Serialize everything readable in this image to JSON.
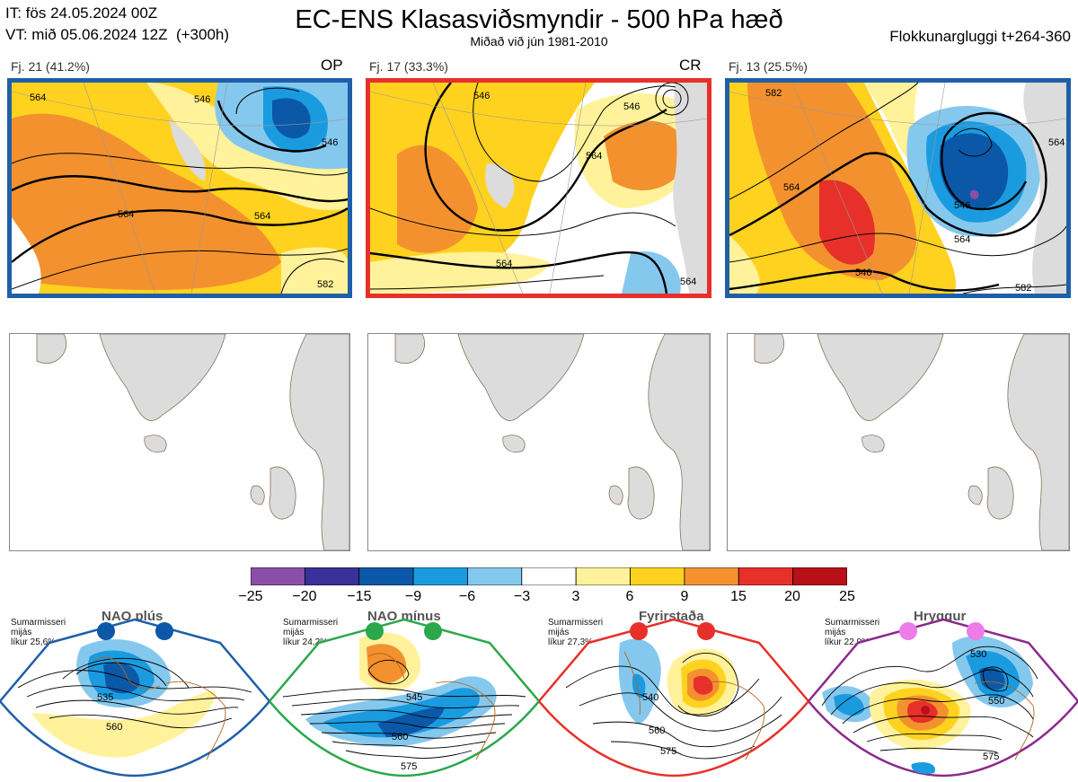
{
  "header": {
    "it_line": "IT: fös 24.05.2024 00Z",
    "vt_line": "VT: mið 05.06.2024 12Z  (+300h)",
    "title": "EC-ENS Klasasviðsmyndir - 500 hPa hæð",
    "subtitle": "Miðað við jún 1981-2010",
    "window": "Flokkunargluggi t+264-360"
  },
  "clusters": [
    {
      "label": "Fj. 21 (41.2%)",
      "tag": "OP",
      "border_color": "#1f5fa8",
      "contour_labels": [
        "564",
        "564",
        "546",
        "564",
        "582",
        "546"
      ]
    },
    {
      "label": "Fj. 17 (33.3%)",
      "tag": "CR",
      "border_color": "#e8302a",
      "contour_labels": [
        "546",
        "564",
        "564",
        "546",
        "564"
      ]
    },
    {
      "label": "Fj. 13 (25.5%)",
      "tag": "",
      "border_color": "#1f5fa8",
      "contour_labels": [
        "564",
        "546",
        "564",
        "546",
        "582",
        "564",
        "582"
      ]
    }
  ],
  "colorbar": {
    "ticks": [
      "−25",
      "−20",
      "−15",
      "−9",
      "−6",
      "−3",
      "3",
      "6",
      "9",
      "15",
      "20",
      "25"
    ],
    "colors": [
      "#8b4fa8",
      "#3b2f99",
      "#0b58a8",
      "#1a9be0",
      "#85c8ee",
      "#ffffff",
      "#fff29a",
      "#ffd21f",
      "#f3912f",
      "#e8302a",
      "#b80f18"
    ]
  },
  "regimes": [
    {
      "name": "NAO plús",
      "note": "Sumarmisseri\nmijás\nlíkur 25,6%",
      "border_color": "#1f5fa8",
      "dot_color": "#0b58a8",
      "contour_labels": [
        "535",
        "560"
      ]
    },
    {
      "name": "NAO mínus",
      "note": "Sumarmisseri\nmijás\nlíkur 24,2%",
      "border_color": "#2aa84a",
      "dot_color": "#2aa84a",
      "contour_labels": [
        "545",
        "560",
        "575"
      ]
    },
    {
      "name": "Fyrirstaða",
      "note": "Sumarmisseri\nmijás\nlíkur 27,3%",
      "border_color": "#e8302a",
      "dot_color": "#e8302a",
      "contour_labels": [
        "540",
        "560",
        "575"
      ]
    },
    {
      "name": "Hryggur",
      "note": "Sumarmisseri\nmijás\nlíkur 22,9%",
      "border_color": "#8b2a8b",
      "dot_color": "#ee7ce8",
      "contour_labels": [
        "530",
        "550",
        "575"
      ]
    }
  ]
}
